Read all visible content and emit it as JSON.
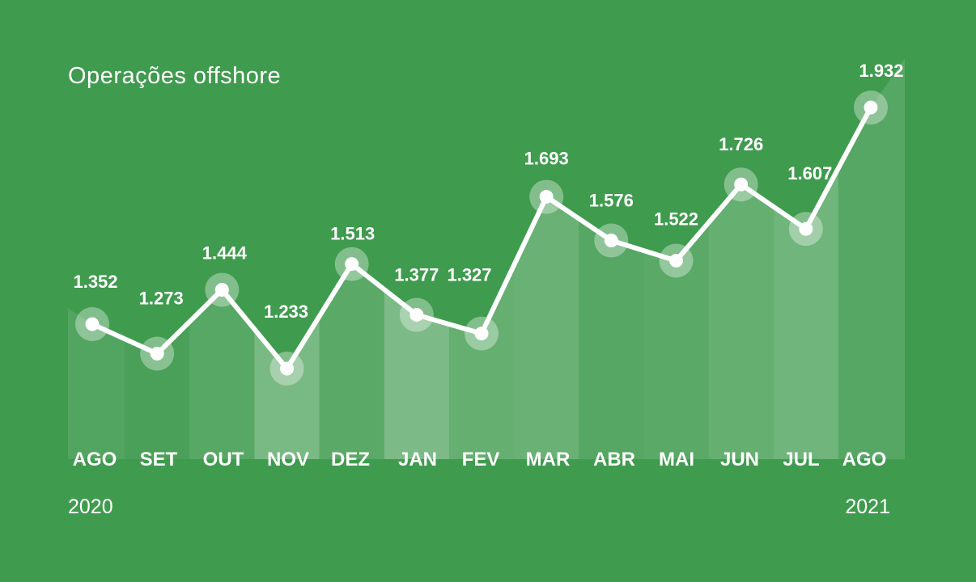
{
  "colors": {
    "background": "#3f9b4e",
    "line": "#ffffff",
    "text": "#ffffff",
    "band_fill": "#ffffff"
  },
  "chart_data": {
    "type": "line",
    "title": "Operações offshore",
    "categories": [
      "AGO",
      "SET",
      "OUT",
      "NOV",
      "DEZ",
      "JAN",
      "FEV",
      "MAR",
      "ABR",
      "MAI",
      "JUN",
      "JUL",
      "AGO"
    ],
    "value_labels": [
      "1.352",
      "1.273",
      "1.444",
      "1.233",
      "1.513",
      "1.377",
      "1.327",
      "1.693",
      "1.576",
      "1.522",
      "1.726",
      "1.607",
      "1.932"
    ],
    "values": [
      1352,
      1273,
      1444,
      1233,
      1513,
      1377,
      1327,
      1693,
      1576,
      1522,
      1726,
      1607,
      1932
    ],
    "year_labels": {
      "start": "2020",
      "end": "2021"
    },
    "grid": false,
    "legend": "none"
  }
}
